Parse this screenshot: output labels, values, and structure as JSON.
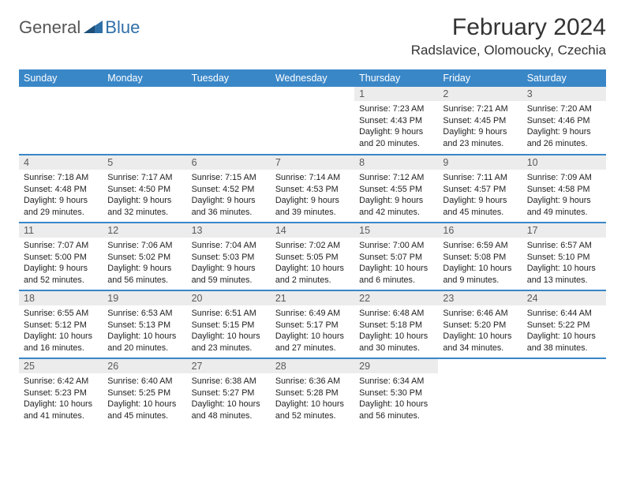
{
  "brand": {
    "part1": "General",
    "part2": "Blue"
  },
  "title": "February 2024",
  "location": "Radslavice, Olomoucky, Czechia",
  "colors": {
    "header_bg": "#3a87c8",
    "header_fg": "#ffffff",
    "daynum_bg": "#ececec",
    "daynum_fg": "#5a5a5a",
    "row_divider": "#3a87c8",
    "body_text": "#222222",
    "brand_gray": "#555555",
    "brand_blue": "#2f6fa8",
    "page_bg": "#ffffff"
  },
  "type": "calendar-table",
  "day_headers": [
    "Sunday",
    "Monday",
    "Tuesday",
    "Wednesday",
    "Thursday",
    "Friday",
    "Saturday"
  ],
  "weeks": [
    [
      null,
      null,
      null,
      null,
      {
        "n": "1",
        "sr": "Sunrise: 7:23 AM",
        "ss": "Sunset: 4:43 PM",
        "d1": "Daylight: 9 hours",
        "d2": "and 20 minutes."
      },
      {
        "n": "2",
        "sr": "Sunrise: 7:21 AM",
        "ss": "Sunset: 4:45 PM",
        "d1": "Daylight: 9 hours",
        "d2": "and 23 minutes."
      },
      {
        "n": "3",
        "sr": "Sunrise: 7:20 AM",
        "ss": "Sunset: 4:46 PM",
        "d1": "Daylight: 9 hours",
        "d2": "and 26 minutes."
      }
    ],
    [
      {
        "n": "4",
        "sr": "Sunrise: 7:18 AM",
        "ss": "Sunset: 4:48 PM",
        "d1": "Daylight: 9 hours",
        "d2": "and 29 minutes."
      },
      {
        "n": "5",
        "sr": "Sunrise: 7:17 AM",
        "ss": "Sunset: 4:50 PM",
        "d1": "Daylight: 9 hours",
        "d2": "and 32 minutes."
      },
      {
        "n": "6",
        "sr": "Sunrise: 7:15 AM",
        "ss": "Sunset: 4:52 PM",
        "d1": "Daylight: 9 hours",
        "d2": "and 36 minutes."
      },
      {
        "n": "7",
        "sr": "Sunrise: 7:14 AM",
        "ss": "Sunset: 4:53 PM",
        "d1": "Daylight: 9 hours",
        "d2": "and 39 minutes."
      },
      {
        "n": "8",
        "sr": "Sunrise: 7:12 AM",
        "ss": "Sunset: 4:55 PM",
        "d1": "Daylight: 9 hours",
        "d2": "and 42 minutes."
      },
      {
        "n": "9",
        "sr": "Sunrise: 7:11 AM",
        "ss": "Sunset: 4:57 PM",
        "d1": "Daylight: 9 hours",
        "d2": "and 45 minutes."
      },
      {
        "n": "10",
        "sr": "Sunrise: 7:09 AM",
        "ss": "Sunset: 4:58 PM",
        "d1": "Daylight: 9 hours",
        "d2": "and 49 minutes."
      }
    ],
    [
      {
        "n": "11",
        "sr": "Sunrise: 7:07 AM",
        "ss": "Sunset: 5:00 PM",
        "d1": "Daylight: 9 hours",
        "d2": "and 52 minutes."
      },
      {
        "n": "12",
        "sr": "Sunrise: 7:06 AM",
        "ss": "Sunset: 5:02 PM",
        "d1": "Daylight: 9 hours",
        "d2": "and 56 minutes."
      },
      {
        "n": "13",
        "sr": "Sunrise: 7:04 AM",
        "ss": "Sunset: 5:03 PM",
        "d1": "Daylight: 9 hours",
        "d2": "and 59 minutes."
      },
      {
        "n": "14",
        "sr": "Sunrise: 7:02 AM",
        "ss": "Sunset: 5:05 PM",
        "d1": "Daylight: 10 hours",
        "d2": "and 2 minutes."
      },
      {
        "n": "15",
        "sr": "Sunrise: 7:00 AM",
        "ss": "Sunset: 5:07 PM",
        "d1": "Daylight: 10 hours",
        "d2": "and 6 minutes."
      },
      {
        "n": "16",
        "sr": "Sunrise: 6:59 AM",
        "ss": "Sunset: 5:08 PM",
        "d1": "Daylight: 10 hours",
        "d2": "and 9 minutes."
      },
      {
        "n": "17",
        "sr": "Sunrise: 6:57 AM",
        "ss": "Sunset: 5:10 PM",
        "d1": "Daylight: 10 hours",
        "d2": "and 13 minutes."
      }
    ],
    [
      {
        "n": "18",
        "sr": "Sunrise: 6:55 AM",
        "ss": "Sunset: 5:12 PM",
        "d1": "Daylight: 10 hours",
        "d2": "and 16 minutes."
      },
      {
        "n": "19",
        "sr": "Sunrise: 6:53 AM",
        "ss": "Sunset: 5:13 PM",
        "d1": "Daylight: 10 hours",
        "d2": "and 20 minutes."
      },
      {
        "n": "20",
        "sr": "Sunrise: 6:51 AM",
        "ss": "Sunset: 5:15 PM",
        "d1": "Daylight: 10 hours",
        "d2": "and 23 minutes."
      },
      {
        "n": "21",
        "sr": "Sunrise: 6:49 AM",
        "ss": "Sunset: 5:17 PM",
        "d1": "Daylight: 10 hours",
        "d2": "and 27 minutes."
      },
      {
        "n": "22",
        "sr": "Sunrise: 6:48 AM",
        "ss": "Sunset: 5:18 PM",
        "d1": "Daylight: 10 hours",
        "d2": "and 30 minutes."
      },
      {
        "n": "23",
        "sr": "Sunrise: 6:46 AM",
        "ss": "Sunset: 5:20 PM",
        "d1": "Daylight: 10 hours",
        "d2": "and 34 minutes."
      },
      {
        "n": "24",
        "sr": "Sunrise: 6:44 AM",
        "ss": "Sunset: 5:22 PM",
        "d1": "Daylight: 10 hours",
        "d2": "and 38 minutes."
      }
    ],
    [
      {
        "n": "25",
        "sr": "Sunrise: 6:42 AM",
        "ss": "Sunset: 5:23 PM",
        "d1": "Daylight: 10 hours",
        "d2": "and 41 minutes."
      },
      {
        "n": "26",
        "sr": "Sunrise: 6:40 AM",
        "ss": "Sunset: 5:25 PM",
        "d1": "Daylight: 10 hours",
        "d2": "and 45 minutes."
      },
      {
        "n": "27",
        "sr": "Sunrise: 6:38 AM",
        "ss": "Sunset: 5:27 PM",
        "d1": "Daylight: 10 hours",
        "d2": "and 48 minutes."
      },
      {
        "n": "28",
        "sr": "Sunrise: 6:36 AM",
        "ss": "Sunset: 5:28 PM",
        "d1": "Daylight: 10 hours",
        "d2": "and 52 minutes."
      },
      {
        "n": "29",
        "sr": "Sunrise: 6:34 AM",
        "ss": "Sunset: 5:30 PM",
        "d1": "Daylight: 10 hours",
        "d2": "and 56 minutes."
      },
      null,
      null
    ]
  ]
}
